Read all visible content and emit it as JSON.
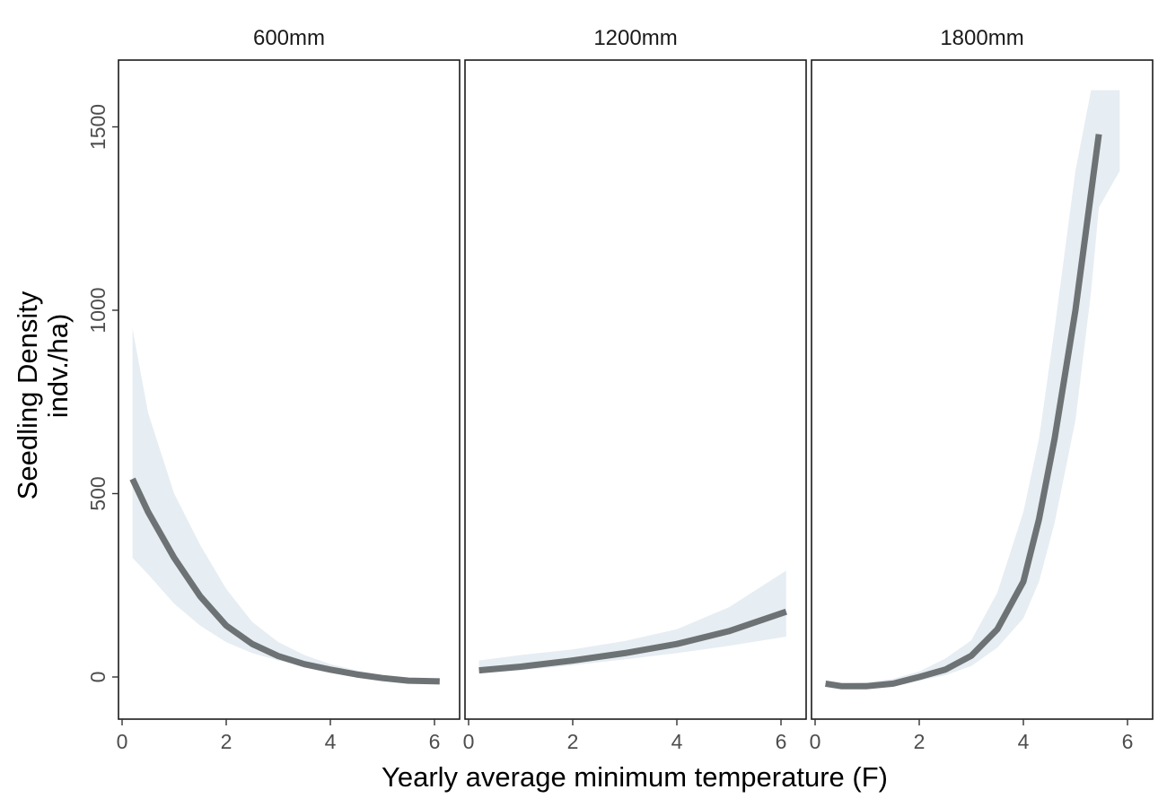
{
  "chart_data": {
    "type": "line",
    "xlabel": "Yearly average minimum temperature (F)",
    "ylabel_lines": [
      "Seedling Density",
      "indv./ha)"
    ],
    "xlim": [
      -0.05,
      6.5
    ],
    "ylim": [
      -120,
      1680
    ],
    "xticks": [
      0,
      2,
      4,
      6
    ],
    "yticks": [
      0,
      500,
      1000,
      1500
    ],
    "grid": false,
    "legend": "none",
    "band_color": "#dde7ef",
    "line_color": "#6d7275",
    "panels": [
      {
        "name": "600mm",
        "x": [
          0.2,
          0.5,
          1.0,
          1.5,
          2.0,
          2.5,
          3.0,
          3.5,
          4.0,
          4.5,
          5.0,
          5.5,
          6.1
        ],
        "y": [
          540,
          450,
          325,
          220,
          140,
          90,
          57,
          35,
          20,
          7,
          -3,
          -10,
          -12
        ],
        "lower": [
          325,
          280,
          200,
          140,
          95,
          65,
          45,
          30,
          18,
          5,
          -5,
          -12,
          -15
        ],
        "upper": [
          950,
          720,
          500,
          360,
          240,
          150,
          95,
          60,
          35,
          18,
          5,
          -5,
          -8
        ]
      },
      {
        "name": "1200mm",
        "x": [
          0.2,
          1.0,
          2.0,
          3.0,
          4.0,
          5.0,
          6.1
        ],
        "y": [
          18,
          28,
          45,
          65,
          90,
          125,
          178
        ],
        "lower": [
          10,
          18,
          32,
          48,
          65,
          85,
          110
        ],
        "upper": [
          45,
          60,
          75,
          98,
          130,
          190,
          290
        ]
      },
      {
        "name": "1800mm",
        "x": [
          0.2,
          0.5,
          1.0,
          1.5,
          2.0,
          2.5,
          3.0,
          3.5,
          4.0,
          4.3,
          4.6,
          5.0,
          5.3,
          5.45
        ],
        "y": [
          -18,
          -25,
          -25,
          -18,
          0,
          20,
          58,
          130,
          260,
          430,
          650,
          1000,
          1320,
          1480
        ],
        "lower": [
          -25,
          -30,
          -30,
          -25,
          -10,
          5,
          30,
          80,
          160,
          260,
          420,
          700,
          1050,
          1280
        ],
        "upper": [
          -10,
          -18,
          -15,
          -5,
          15,
          50,
          100,
          230,
          450,
          650,
          950,
          1380,
          1600,
          1600
        ],
        "band_end_x": [
          5.85,
          5.85
        ],
        "band_end_lower_upper": [
          1380,
          1600
        ]
      }
    ]
  }
}
